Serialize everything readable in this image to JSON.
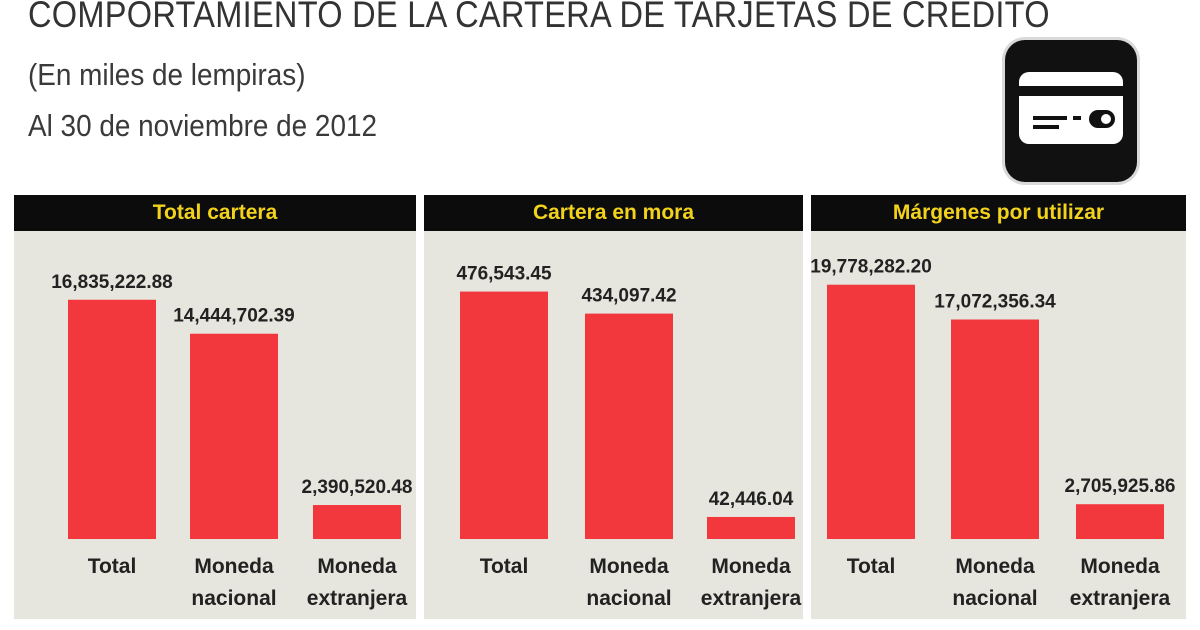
{
  "header": {
    "title": "COMPORTAMIENTO DE LA CARTERA DE TARJETAS DE CRÉDITO",
    "subtitle": "(En miles de lempiras)",
    "date": "Al 30 de noviembre de 2012"
  },
  "icon": {
    "name": "credit-card-icon"
  },
  "colors": {
    "bar": "#f2373d",
    "header_bg": "#0c0c0c",
    "header_text": "#f3d21c",
    "panel_bg": "#e7e6de"
  },
  "chart_data": [
    {
      "type": "bar",
      "title": "Total cartera",
      "categories": [
        [
          "Total"
        ],
        [
          "Moneda",
          "nacional"
        ],
        [
          "Moneda",
          "extranjera"
        ]
      ],
      "values": [
        16835222.88,
        14444702.39,
        2390520.48
      ],
      "labels": [
        "16,835,222.88",
        "14,444,702.39",
        "2,390,520.48"
      ],
      "ylim": [
        0,
        19000000
      ]
    },
    {
      "type": "bar",
      "title": "Cartera en mora",
      "categories": [
        [
          "Total"
        ],
        [
          "Moneda",
          "nacional"
        ],
        [
          "Moneda",
          "extranjera"
        ]
      ],
      "values": [
        476543.45,
        434097.42,
        42446.04
      ],
      "labels": [
        "476,543.45",
        "434,097.42",
        "42,446.04"
      ],
      "ylim": [
        0,
        520000
      ]
    },
    {
      "type": "bar",
      "title": "Márgenes por utilizar",
      "categories": [
        [
          "Total"
        ],
        [
          "Moneda",
          "nacional"
        ],
        [
          "Moneda",
          "extranjera"
        ]
      ],
      "values": [
        19778282.2,
        17072356.34,
        2705925.86
      ],
      "labels": [
        "19,778,282.20",
        "17,072,356.34",
        "2,705,925.86"
      ],
      "ylim": [
        0,
        21000000
      ]
    }
  ]
}
